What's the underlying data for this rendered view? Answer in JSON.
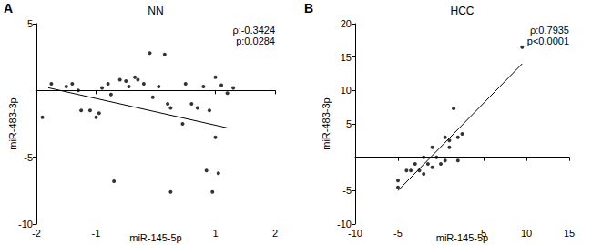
{
  "chart_data": [
    {
      "type": "scatter",
      "panel": "A",
      "title": "NN",
      "x_label": "miR-145-5p",
      "y_label": "miR-483-3p",
      "annotations": [
        "ρ:-0.3424",
        "p:0.0284"
      ],
      "x": [
        -1.9,
        -1.75,
        -1.5,
        -1.4,
        -1.3,
        -1.25,
        -1.1,
        -1.0,
        -0.95,
        -0.9,
        -0.8,
        -0.75,
        -0.7,
        -0.6,
        -0.5,
        -0.45,
        -0.35,
        -0.3,
        -0.2,
        -0.1,
        -0.05,
        0.05,
        0.15,
        0.2,
        0.25,
        0.25,
        0.45,
        0.5,
        0.6,
        0.7,
        0.8,
        0.85,
        0.9,
        0.95,
        1.0,
        1.0,
        1.05,
        1.1,
        1.2,
        1.3
      ],
      "y": [
        -2.0,
        0.5,
        0.3,
        0.5,
        0.0,
        -1.5,
        -1.5,
        -2.0,
        -1.7,
        0.2,
        0.5,
        -0.3,
        -6.8,
        0.8,
        0.7,
        0.3,
        1.0,
        0.8,
        0.5,
        2.8,
        -0.5,
        0.3,
        2.7,
        -1.0,
        -7.6,
        -1.3,
        -2.5,
        0.5,
        -1.0,
        -1.3,
        0.3,
        -6.0,
        -1.5,
        -7.6,
        -3.5,
        1.0,
        -6.2,
        0.4,
        -0.2,
        0.2
      ],
      "fit_line": {
        "x": [
          -1.8,
          1.2
        ],
        "y": [
          0.2,
          -2.8
        ]
      },
      "xlim": [
        -2,
        2
      ],
      "xticks": [
        -2,
        -1,
        1,
        2
      ],
      "ylim": [
        -10,
        5
      ],
      "yticks": [
        -10,
        -5,
        5
      ],
      "color": "#000000",
      "marker": "circle",
      "line_style": "solid",
      "grid": false
    },
    {
      "type": "scatter",
      "panel": "B",
      "title": "HCC",
      "x_label": "miR-145-5p",
      "y_label": "miR-483-3p",
      "annotations": [
        "ρ:0.7935",
        "p<0.0001"
      ],
      "x": [
        -5,
        -5,
        -4,
        -3.5,
        -3,
        -2.5,
        -2,
        -2,
        -1.5,
        -1,
        -1,
        -0.5,
        0,
        0.5,
        0.5,
        1,
        1,
        1.5,
        2,
        2,
        2.5,
        9.5
      ],
      "y": [
        -4.5,
        -3.5,
        -2,
        -2,
        -1,
        -2,
        -2.5,
        0,
        -1,
        1.5,
        -1.5,
        0,
        -1,
        3,
        -0.5,
        2.5,
        1.5,
        7.3,
        3,
        -0.5,
        3.5,
        16.5
      ],
      "fit_line": {
        "x": [
          -5,
          9.5
        ],
        "y": [
          -5,
          14
        ]
      },
      "xlim": [
        -10,
        15
      ],
      "xticks": [
        -10,
        -5,
        5,
        10,
        15
      ],
      "ylim": [
        -10,
        20
      ],
      "yticks": [
        -10,
        -5,
        5,
        10,
        15,
        20
      ],
      "color": "#000000",
      "marker": "circle",
      "line_style": "solid",
      "grid": false
    }
  ]
}
